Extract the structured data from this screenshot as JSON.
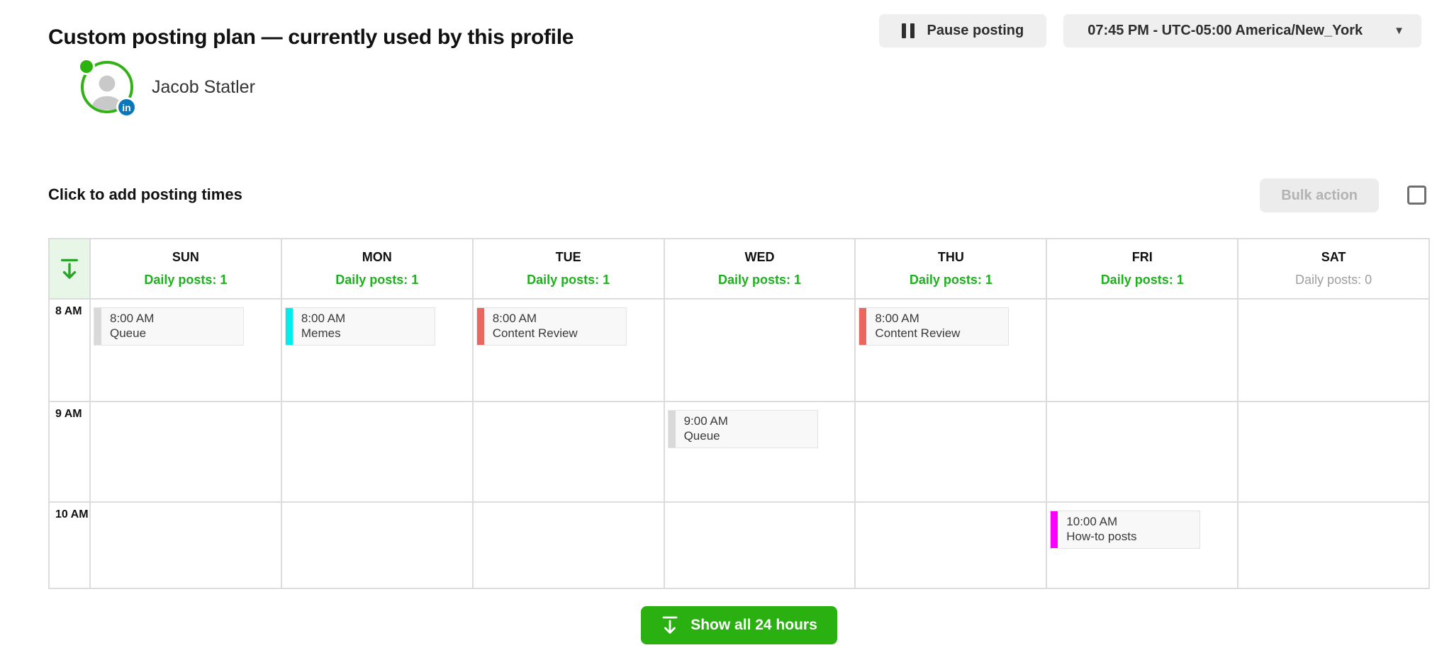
{
  "page": {
    "title": "Custom posting plan — currently used by this profile"
  },
  "topbar": {
    "pause_button": "Pause posting",
    "timezone": "07:45 PM - UTC-05:00 America/New_York"
  },
  "profile": {
    "name": "Jacob Statler",
    "network_badge": "in"
  },
  "plan_toolbar": {
    "hint": "Click to add posting times",
    "bulk_action": "Bulk action",
    "bulk_checkbox_checked": false
  },
  "calendar": {
    "days": [
      {
        "name": "SUN",
        "daily_posts": "Daily posts: 1",
        "active": true
      },
      {
        "name": "MON",
        "daily_posts": "Daily posts: 1",
        "active": true
      },
      {
        "name": "TUE",
        "daily_posts": "Daily posts: 1",
        "active": true
      },
      {
        "name": "WED",
        "daily_posts": "Daily posts: 1",
        "active": true
      },
      {
        "name": "THU",
        "daily_posts": "Daily posts: 1",
        "active": true
      },
      {
        "name": "FRI",
        "daily_posts": "Daily posts: 1",
        "active": true
      },
      {
        "name": "SAT",
        "daily_posts": "Daily posts: 0",
        "active": false
      }
    ],
    "hours": [
      "8 AM",
      "9 AM",
      "10 AM"
    ],
    "events": [
      {
        "day": 0,
        "hour": 0,
        "time": "8:00 AM",
        "label": "Queue",
        "accent": "#d9d9d9"
      },
      {
        "day": 1,
        "hour": 0,
        "time": "8:00 AM",
        "label": "Memes",
        "accent": "#00eded"
      },
      {
        "day": 2,
        "hour": 0,
        "time": "8:00 AM",
        "label": "Content Review",
        "accent": "#ea675f"
      },
      {
        "day": 4,
        "hour": 0,
        "time": "8:00 AM",
        "label": "Content Review",
        "accent": "#ea675f"
      },
      {
        "day": 3,
        "hour": 1,
        "time": "9:00 AM",
        "label": "Queue",
        "accent": "#d9d9d9"
      },
      {
        "day": 5,
        "hour": 2,
        "time": "10:00 AM",
        "label": "How-to posts",
        "accent": "#fb00fb"
      }
    ]
  },
  "footer": {
    "show_all_button": "Show all 24 hours"
  },
  "colors": {
    "brand_green": "#1eb11e",
    "button_green": "#2bb012",
    "inactive_gray": "#9e9e9e",
    "avatar_ring": "#33b117",
    "linkedin_blue": "#0a78b8"
  }
}
